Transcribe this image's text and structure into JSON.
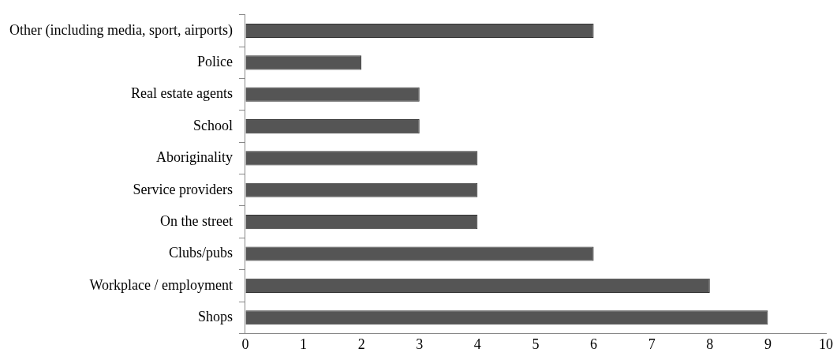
{
  "chart_data": {
    "type": "bar",
    "orientation": "horizontal",
    "categories": [
      "Other (including media, sport, airports)",
      "Police",
      "Real estate agents",
      "School",
      "Aboriginality",
      "Service providers",
      "On the street",
      "Clubs/pubs",
      "Workplace / employment",
      "Shops"
    ],
    "values": [
      6,
      2,
      3,
      3,
      4,
      4,
      4,
      6,
      8,
      9
    ],
    "color": "#555555",
    "xlim": [
      0,
      10
    ],
    "xticks": [
      0,
      1,
      2,
      3,
      4,
      5,
      6,
      7,
      8,
      9,
      10
    ],
    "grid": false,
    "legend": false
  }
}
